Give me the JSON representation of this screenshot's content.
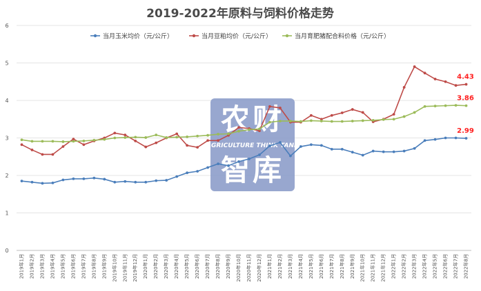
{
  "chart_data": {
    "type": "line",
    "title": "2019-2022年原料与饲料价格走势",
    "xlabel": "",
    "ylabel": "",
    "ylim": [
      0,
      6
    ],
    "yticks": [
      0,
      1,
      2,
      3,
      4,
      5,
      6
    ],
    "grid": "horizontal",
    "legend_position": "top",
    "categories": [
      "2019年1月",
      "2019年2月",
      "2019年3月",
      "2019年4月",
      "2019年5月",
      "2019年6月",
      "2019年7月",
      "2019年8月",
      "2019年9月",
      "2019年10月",
      "2019年11月",
      "2019年12月",
      "2020年1月",
      "2020年2月",
      "2020年3月",
      "2020年4月",
      "2020年5月",
      "2020年6月",
      "2020年7月",
      "2020年8月",
      "2020年9月",
      "2020年10月",
      "2020年11月",
      "2020年12月",
      "2021年1月",
      "2021年2月",
      "2021年3月",
      "2021年4月",
      "2021年5月",
      "2021年6月",
      "2021年7月",
      "2021年8月",
      "2021年9月",
      "2021年10月",
      "2021年11月",
      "2021年12月",
      "2022年1月",
      "2022年2月",
      "2022年3月",
      "2022年4月",
      "2022年5月",
      "2022年6月",
      "2022年7月",
      "2022年8月"
    ],
    "series": [
      {
        "name": "当月玉米均价（元/公斤）",
        "color": "#4a7ebb",
        "values": [
          1.85,
          1.82,
          1.79,
          1.8,
          1.88,
          1.91,
          1.91,
          1.93,
          1.9,
          1.82,
          1.84,
          1.82,
          1.82,
          1.86,
          1.87,
          1.97,
          2.07,
          2.11,
          2.21,
          2.31,
          2.26,
          2.37,
          2.44,
          2.55,
          2.79,
          2.88,
          2.52,
          2.77,
          2.82,
          2.8,
          2.7,
          2.7,
          2.62,
          2.54,
          2.65,
          2.63,
          2.63,
          2.65,
          2.72,
          2.93,
          2.96,
          3.0,
          3.0,
          2.99
        ]
      },
      {
        "name": "当月豆粕均价（元/公斤）",
        "color": "#be4b48",
        "values": [
          2.82,
          2.68,
          2.56,
          2.56,
          2.77,
          2.97,
          2.82,
          2.92,
          3.0,
          3.13,
          3.08,
          2.92,
          2.76,
          2.87,
          3.0,
          3.11,
          2.8,
          2.75,
          2.93,
          2.93,
          3.07,
          3.28,
          3.25,
          3.19,
          3.84,
          3.8,
          3.42,
          3.42,
          3.6,
          3.5,
          3.6,
          3.67,
          3.76,
          3.68,
          3.43,
          3.5,
          3.63,
          4.35,
          4.9,
          4.73,
          4.57,
          4.5,
          4.4,
          4.43
        ]
      },
      {
        "name": "当月育肥猪配合料价格（元/公斤）",
        "color": "#9bbb59",
        "values": [
          2.95,
          2.91,
          2.91,
          2.91,
          2.9,
          2.91,
          2.92,
          2.94,
          2.96,
          3.0,
          3.01,
          3.02,
          3.01,
          3.08,
          3.01,
          3.02,
          3.03,
          3.05,
          3.07,
          3.1,
          3.11,
          3.18,
          3.22,
          3.24,
          3.42,
          3.45,
          3.45,
          3.44,
          3.46,
          3.45,
          3.44,
          3.44,
          3.45,
          3.46,
          3.47,
          3.49,
          3.5,
          3.57,
          3.68,
          3.84,
          3.85,
          3.86,
          3.87,
          3.86
        ]
      }
    ],
    "annotations": [
      {
        "text": "4.43",
        "series": 1,
        "index": 43
      },
      {
        "text": "3.86",
        "series": 2,
        "index": 43
      },
      {
        "text": "2.99",
        "series": 0,
        "index": 43
      }
    ]
  },
  "watermark": {
    "line1": "农财",
    "line2": "AGRICULTURE THINK TANK",
    "line3": "智库",
    "color": "#8a9bc8"
  }
}
